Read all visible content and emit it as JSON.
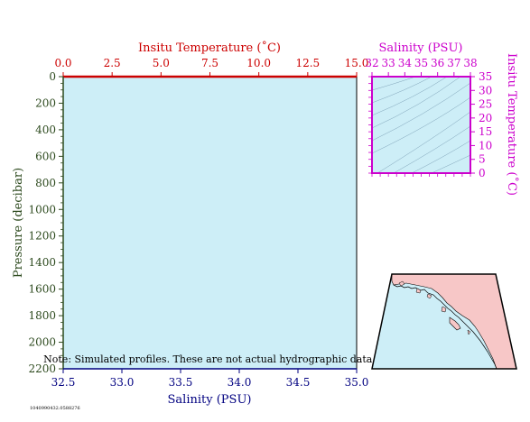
{
  "chart_data": [
    {
      "type": "line",
      "title": "",
      "note": "Note: Simulated profiles.  These are not actual hydrographic data.",
      "footer_id": "1040990432.0588276",
      "top_axis": {
        "label": "Insitu Temperature (˚C)",
        "ticks": [
          "0.0",
          "2.5",
          "5.0",
          "7.5",
          "10.0",
          "12.5",
          "15.0"
        ],
        "range": [
          0,
          15
        ],
        "color": "#cc0000"
      },
      "bottom_axis": {
        "label": "Salinity (PSU)",
        "ticks": [
          "32.5",
          "33.0",
          "33.5",
          "34.0",
          "34.5",
          "35.0"
        ],
        "range": [
          32.5,
          35.0
        ],
        "color": "#000080"
      },
      "left_axis": {
        "label": "Pressure (decibar)",
        "ticks": [
          "0",
          "200",
          "400",
          "600",
          "800",
          "1000",
          "1200",
          "1400",
          "1600",
          "1800",
          "2000",
          "2200"
        ],
        "range": [
          0,
          2200
        ],
        "inverted": true,
        "color": "#2d4a1e"
      },
      "series": [],
      "background": "#cdeef7"
    },
    {
      "type": "scatter",
      "title": "",
      "top_axis": {
        "label": "Salinity (PSU)",
        "ticks": [
          "32",
          "33",
          "34",
          "35",
          "36",
          "37",
          "38"
        ],
        "range": [
          32,
          38
        ],
        "color": "#cc00cc"
      },
      "right_axis": {
        "label": "Insitu Temperature (˚C)",
        "ticks": [
          "0",
          "5",
          "10",
          "15",
          "20",
          "25",
          "30",
          "35"
        ],
        "range": [
          0,
          35
        ],
        "color": "#cc00cc"
      },
      "contours": "density isolines",
      "background": "#cdeef7"
    }
  ],
  "map": {
    "region": "North Pacific coast",
    "ocean_color": "#cdeef7",
    "land_color": "#f7c7c7"
  }
}
